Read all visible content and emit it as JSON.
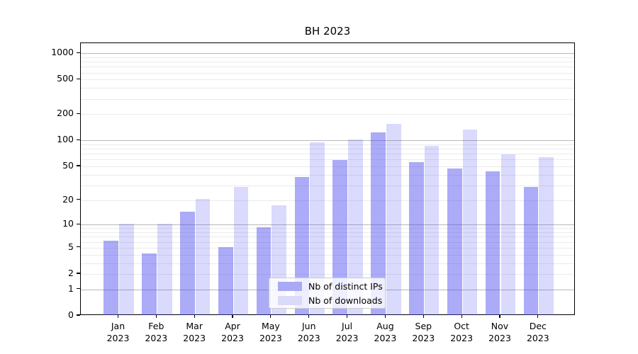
{
  "title": "BH 2023",
  "legend": {
    "items": [
      {
        "label": "Nb of distinct IPs",
        "swatch_color": "#a9a9f6"
      },
      {
        "label": "Nb of downloads",
        "swatch_color": "#dadaf9"
      }
    ]
  },
  "colors": {
    "bar_distinct_ips": "rgba(68,68,238,0.45)",
    "bar_downloads": "rgba(68,68,238,0.2)",
    "gridline_major": "#b8b8b8",
    "gridline_minor": "#ebebeb"
  },
  "chart_data": {
    "type": "bar",
    "title": "BH 2023",
    "xlabel": "",
    "ylabel": "",
    "y_scale": "log1p",
    "ylim": [
      0,
      1000
    ],
    "grid": true,
    "legend_position": "bottom-center",
    "ytick_labels": [
      "1000",
      "500",
      "200",
      "100",
      "50",
      "20",
      "10",
      "5",
      "2",
      "1",
      "0"
    ],
    "ytick_values": [
      1000,
      500,
      200,
      100,
      50,
      20,
      10,
      5,
      2,
      1,
      0
    ],
    "categories": [
      {
        "month": "Jan",
        "year": "2023"
      },
      {
        "month": "Feb",
        "year": "2023"
      },
      {
        "month": "Mar",
        "year": "2023"
      },
      {
        "month": "Apr",
        "year": "2023"
      },
      {
        "month": "May",
        "year": "2023"
      },
      {
        "month": "Jun",
        "year": "2023"
      },
      {
        "month": "Jul",
        "year": "2023"
      },
      {
        "month": "Aug",
        "year": "2023"
      },
      {
        "month": "Sep",
        "year": "2023"
      },
      {
        "month": "Oct",
        "year": "2023"
      },
      {
        "month": "Nov",
        "year": "2023"
      },
      {
        "month": "Dec",
        "year": "2023"
      }
    ],
    "series": [
      {
        "name": "Nb of distinct IPs",
        "values": [
          6,
          4,
          14,
          5,
          9,
          37,
          58,
          120,
          55,
          46,
          43,
          28
        ]
      },
      {
        "name": "Nb of downloads",
        "values": [
          10,
          10,
          20,
          28,
          17,
          93,
          100,
          152,
          85,
          130,
          68,
          62
        ]
      }
    ]
  }
}
